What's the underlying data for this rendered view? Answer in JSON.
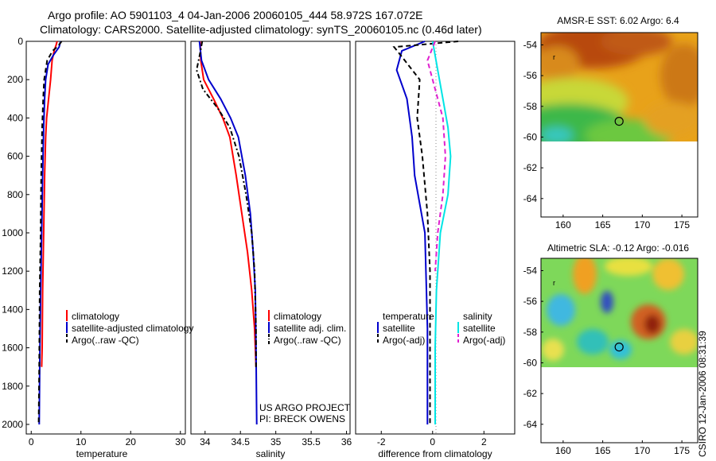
{
  "header": {
    "line1": "Argo profile: AO 5901103_4 04-Jan-2006 20060105_444 58.972S 167.072E",
    "line2": "Climatology: CARS2000. Satellite-adjusted climatology: synTS_20060105.nc (0.46d later)"
  },
  "footer_note": "CSIRO 12-Jan-2006 08:31:39",
  "project_note": {
    "line1": "US ARGO PROJECT",
    "line2": "PI: BRECK OWENS"
  },
  "colors": {
    "climatology": "#ff0000",
    "satellite": "#0000cc",
    "argo": "#000000",
    "sat_salt": "#00e5e5",
    "argo_adj_salt": "#e020d0"
  },
  "chart_data": [
    {
      "type": "line",
      "id": "temperature",
      "xlabel": "temperature",
      "ylabel": "",
      "xlim": [
        -1,
        31
      ],
      "ylim": [
        2050,
        0
      ],
      "xticks": [
        0,
        10,
        20,
        30
      ],
      "yticks": [
        0,
        200,
        400,
        600,
        800,
        1000,
        1200,
        1400,
        1600,
        1800,
        2000
      ],
      "legend": [
        "climatology",
        "satellite-adjusted climatology",
        "Argo(..raw -QC)"
      ],
      "series": [
        {
          "name": "climatology",
          "style": "solid",
          "color": "#ff0000",
          "points": [
            [
              5.2,
              0
            ],
            [
              5.0,
              20
            ],
            [
              4.6,
              50
            ],
            [
              4.2,
              100
            ],
            [
              3.9,
              200
            ],
            [
              3.5,
              300
            ],
            [
              3.1,
              400
            ],
            [
              2.9,
              500
            ],
            [
              2.7,
              700
            ],
            [
              2.5,
              1000
            ],
            [
              2.3,
              1300
            ],
            [
              2.2,
              1600
            ],
            [
              2.1,
              1700
            ]
          ]
        },
        {
          "name": "satellite-adjusted climatology",
          "style": "solid",
          "color": "#0000cc",
          "points": [
            [
              5.9,
              0
            ],
            [
              5.6,
              30
            ],
            [
              4.5,
              70
            ],
            [
              3.4,
              120
            ],
            [
              2.9,
              200
            ],
            [
              2.7,
              300
            ],
            [
              2.5,
              450
            ],
            [
              2.3,
              700
            ],
            [
              2.1,
              1000
            ],
            [
              1.9,
              1300
            ],
            [
              1.7,
              1700
            ],
            [
              1.6,
              2000
            ]
          ]
        },
        {
          "name": "Argo(..raw -QC)",
          "style": "dash",
          "color": "#000000",
          "points": [
            [
              6.1,
              0
            ],
            [
              5.4,
              25
            ],
            [
              4.3,
              50
            ],
            [
              3.2,
              100
            ],
            [
              2.6,
              200
            ],
            [
              2.4,
              300
            ],
            [
              2.2,
              450
            ],
            [
              2.0,
              700
            ],
            [
              1.9,
              1000
            ],
            [
              1.7,
              1300
            ],
            [
              1.6,
              1700
            ],
            [
              1.5,
              2000
            ]
          ]
        }
      ]
    },
    {
      "type": "line",
      "id": "salinity",
      "xlabel": "salinity",
      "xlim": [
        33.8,
        36.05
      ],
      "ylim": [
        2050,
        0
      ],
      "xticks": [
        34,
        34.5,
        35,
        35.5,
        36
      ],
      "yticks": [],
      "legend": [
        "climatology",
        "satellite adj. clim.",
        "Argo(..raw -QC)"
      ],
      "series": [
        {
          "name": "climatology",
          "style": "solid",
          "color": "#ff0000",
          "points": [
            [
              33.93,
              0
            ],
            [
              33.94,
              100
            ],
            [
              33.98,
              200
            ],
            [
              34.12,
              300
            ],
            [
              34.25,
              400
            ],
            [
              34.35,
              500
            ],
            [
              34.44,
              700
            ],
            [
              34.52,
              900
            ],
            [
              34.6,
              1100
            ],
            [
              34.66,
              1300
            ],
            [
              34.7,
              1500
            ],
            [
              34.72,
              1700
            ]
          ]
        },
        {
          "name": "satellite adj. clim.",
          "style": "solid",
          "color": "#0000cc",
          "points": [
            [
              33.92,
              0
            ],
            [
              33.95,
              100
            ],
            [
              34.05,
              200
            ],
            [
              34.22,
              300
            ],
            [
              34.36,
              400
            ],
            [
              34.47,
              500
            ],
            [
              34.57,
              700
            ],
            [
              34.64,
              900
            ],
            [
              34.68,
              1100
            ],
            [
              34.71,
              1300
            ],
            [
              34.72,
              1600
            ],
            [
              34.73,
              2000
            ]
          ]
        },
        {
          "name": "Argo(..raw -QC)",
          "style": "dashdot",
          "color": "#000000",
          "points": [
            [
              33.96,
              0
            ],
            [
              33.93,
              60
            ],
            [
              33.88,
              150
            ],
            [
              33.97,
              250
            ],
            [
              34.18,
              350
            ],
            [
              34.35,
              450
            ],
            [
              34.48,
              600
            ],
            [
              34.58,
              800
            ],
            [
              34.66,
              1000
            ],
            [
              34.7,
              1200
            ],
            [
              34.72,
              1500
            ],
            [
              34.72,
              1700
            ]
          ]
        }
      ]
    },
    {
      "type": "line",
      "id": "difference",
      "xlabel": "difference from climatology",
      "xlim": [
        -3,
        3.2
      ],
      "ylim": [
        2050,
        0
      ],
      "xticks": [
        -2,
        0,
        2
      ],
      "yticks": [],
      "legend_left_title": "temperature",
      "legend_right_title": "salinity",
      "legend_left": [
        "satellite",
        "Argo(-adj)"
      ],
      "legend_right": [
        "satellite",
        "Argo(-adj)"
      ],
      "series": [
        {
          "name": "temperature satellite",
          "style": "solid",
          "color": "#0000cc",
          "points": [
            [
              -0.3,
              0
            ],
            [
              -1.2,
              50
            ],
            [
              -1.4,
              150
            ],
            [
              -1.0,
              300
            ],
            [
              -0.8,
              500
            ],
            [
              -0.7,
              700
            ],
            [
              -0.3,
              1000
            ],
            [
              -0.2,
              1500
            ],
            [
              -0.2,
              2000
            ]
          ]
        },
        {
          "name": "temperature Argo(-adj)",
          "style": "dash",
          "color": "#000000",
          "points": [
            [
              1.0,
              0
            ],
            [
              -1.5,
              30
            ],
            [
              -1.2,
              80
            ],
            [
              -0.5,
              200
            ],
            [
              -0.6,
              400
            ],
            [
              -0.4,
              600
            ],
            [
              -0.2,
              900
            ],
            [
              -0.1,
              1200
            ],
            [
              -0.1,
              2000
            ]
          ]
        },
        {
          "name": "salinity satellite",
          "style": "solid",
          "color": "#00e5e5",
          "points": [
            [
              0.0,
              0
            ],
            [
              0.2,
              150
            ],
            [
              0.4,
              300
            ],
            [
              0.6,
              450
            ],
            [
              0.7,
              600
            ],
            [
              0.6,
              800
            ],
            [
              0.3,
              1000
            ],
            [
              0.15,
              1300
            ],
            [
              0.1,
              1600
            ],
            [
              0.1,
              2000
            ]
          ]
        },
        {
          "name": "salinity Argo(-adj)",
          "style": "dash",
          "color": "#e020d0",
          "points": [
            [
              0.1,
              0
            ],
            [
              -0.2,
              100
            ],
            [
              0.1,
              250
            ],
            [
              0.4,
              400
            ],
            [
              0.5,
              600
            ],
            [
              0.4,
              800
            ],
            [
              0.2,
              1000
            ],
            [
              0.1,
              1200
            ]
          ]
        }
      ]
    },
    {
      "type": "heatmap",
      "id": "sst_map",
      "title": "AMSR-E SST: 6.02 Argo: 6.4",
      "xlim": [
        157.2,
        177
      ],
      "ylim": [
        -65.2,
        -53.2
      ],
      "xticks": [
        160,
        165,
        170,
        175
      ],
      "yticks": [
        -54,
        -56,
        -58,
        -60,
        -62,
        -64
      ],
      "profile_marker": [
        167.07,
        -58.97
      ],
      "data_extent_lat": [
        -60.1,
        -53.2
      ]
    },
    {
      "type": "heatmap",
      "id": "sla_map",
      "title": "Altimetric SLA: -0.12 Argo: -0.016",
      "xlim": [
        157.2,
        177
      ],
      "ylim": [
        -65.2,
        -53.2
      ],
      "xticks": [
        160,
        165,
        170,
        175
      ],
      "yticks": [
        -54,
        -56,
        -58,
        -60,
        -62,
        -64
      ],
      "profile_marker": [
        167.07,
        -58.97
      ],
      "data_extent_lat": [
        -60.1,
        -53.2
      ]
    }
  ]
}
